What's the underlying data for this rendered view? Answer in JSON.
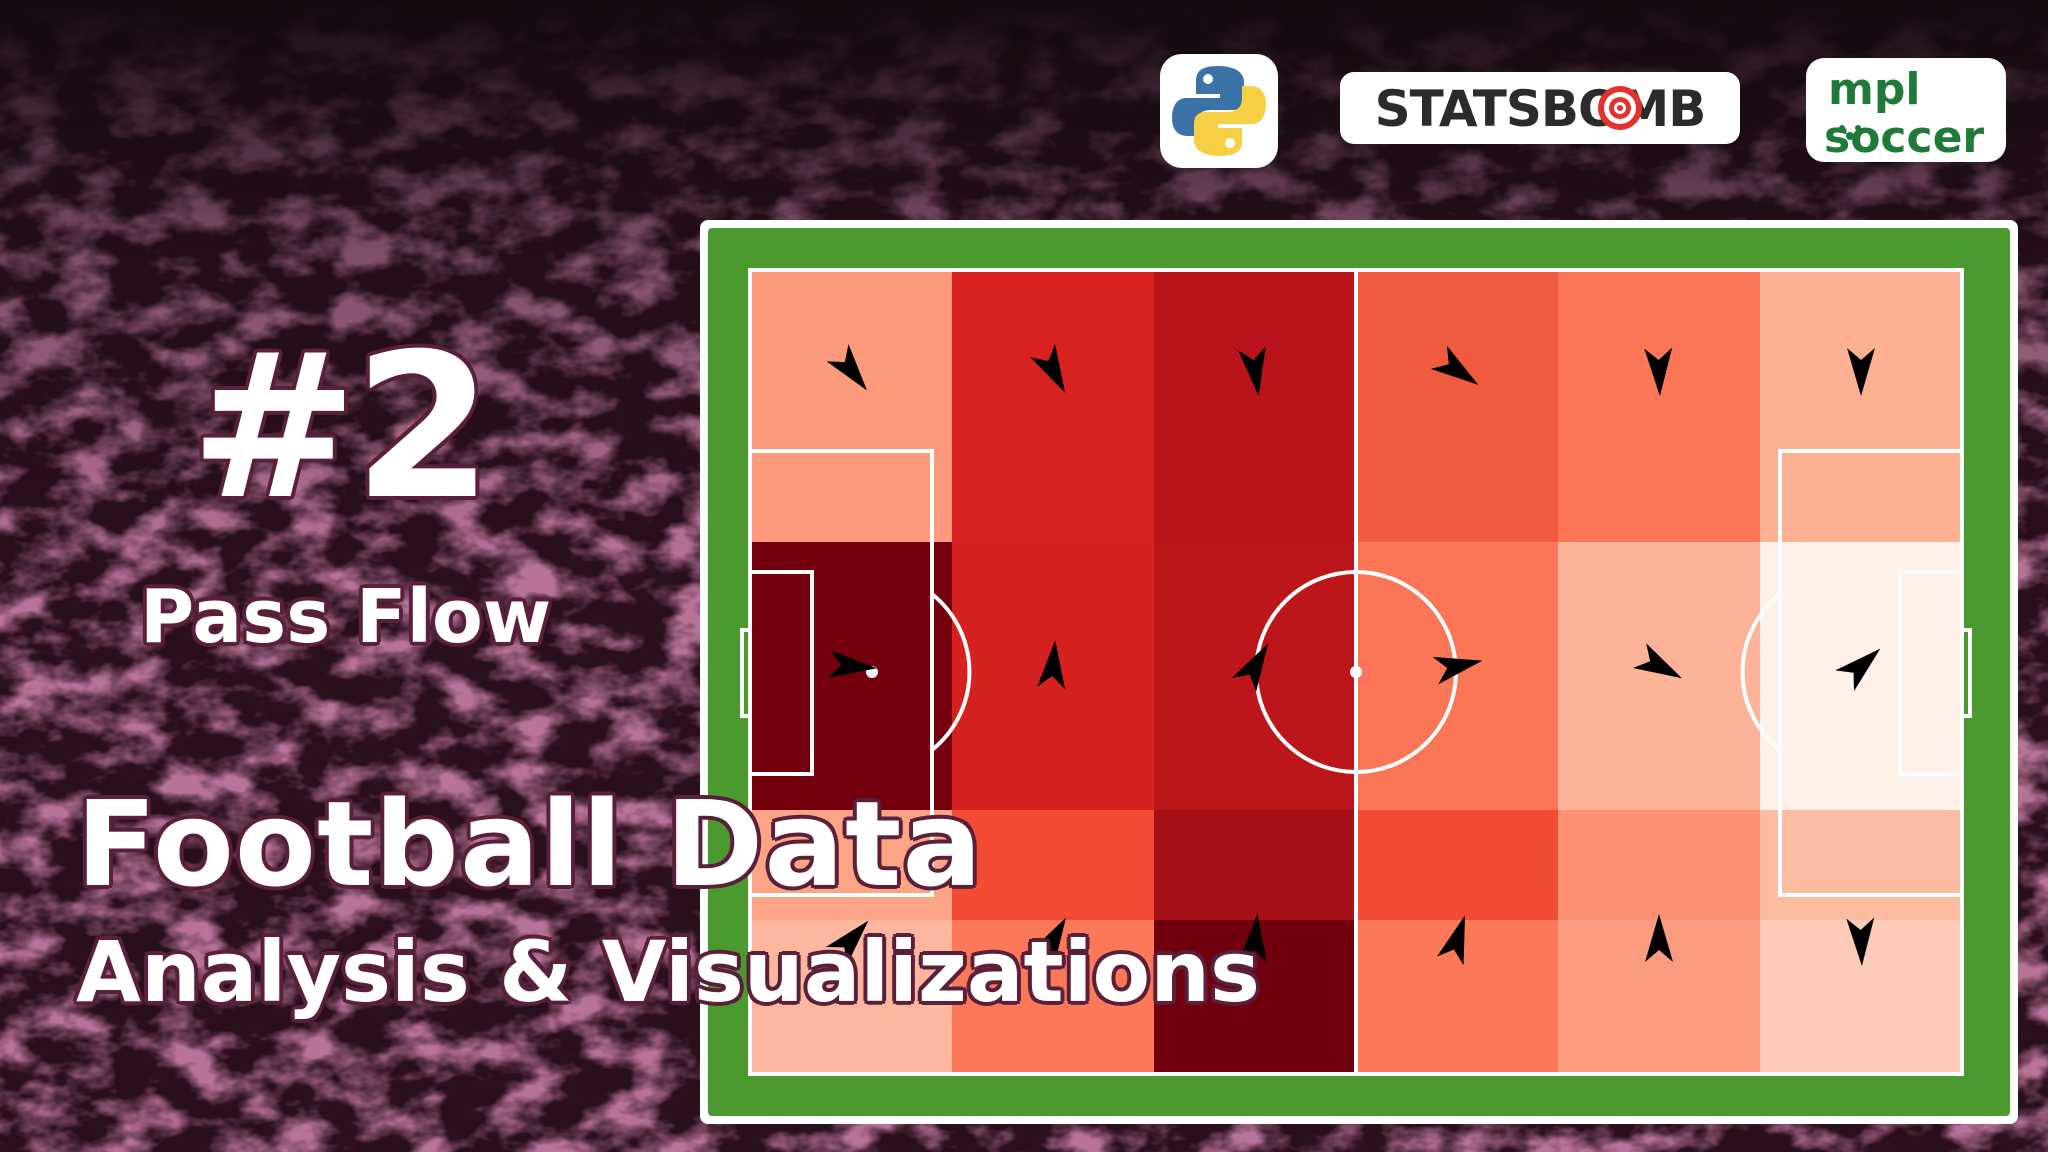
{
  "title": {
    "episode_number": "#2",
    "episode_topic": "Pass Flow",
    "headline_main": "Football Data",
    "headline_sub": "Analysis & Visualizations"
  },
  "logos": {
    "python": {
      "icon": "python-logo-icon",
      "colors": [
        "#3b72a8",
        "#f7cf45"
      ]
    },
    "statsbomb": {
      "text": "STATSBOMB",
      "highlight": "O",
      "colors": [
        "#2b2b2b",
        "#e4312b"
      ]
    },
    "mplsoccer": {
      "line1": "mpl",
      "line2": "soccer",
      "color": "#1f7a3a"
    }
  },
  "colors": {
    "background": "#2a0f1d",
    "crowd_tint": "#7a2c52",
    "title_outline": "#5a1f3a",
    "pitch_grass": "#4b9a2f",
    "pitch_lines": "#ffffff",
    "arrow": "#000000"
  },
  "chart_data": {
    "type": "heatmap",
    "grid": {
      "columns": 6,
      "rows": 4
    },
    "cell_colors": [
      [
        "#fc9a7b",
        "#d7221f",
        "#b81419",
        "#f05a3f",
        "#fb7656",
        "#fdaf91"
      ],
      [
        "#74000e",
        "#d52221",
        "#bc151a",
        "#fb7656",
        "#fcb398",
        "#fff0e8"
      ],
      [
        "#fca486",
        "#f34b34",
        "#a50f15",
        "#f34b34",
        "#fc9070",
        "#fcbca2"
      ],
      [
        "#fcb79e",
        "#fb7858",
        "#70000d",
        "#fb7858",
        "#fc9c7e",
        "#fdcbb8"
      ]
    ],
    "flow_angles_deg": [
      [
        52,
        62,
        82,
        35,
        88,
        90
      ],
      [
        5,
        -85,
        -60,
        -12,
        28,
        -42
      ],
      [
        -48,
        -60,
        -85,
        -72,
        -90,
        88
      ],
      [
        0,
        0,
        0,
        0,
        0,
        0
      ]
    ],
    "flow_visible": [
      [
        true,
        true,
        true,
        true,
        true,
        true
      ],
      [
        true,
        true,
        true,
        true,
        true,
        true
      ],
      [
        true,
        true,
        true,
        true,
        true,
        true
      ],
      [
        false,
        false,
        false,
        false,
        false,
        false
      ]
    ]
  }
}
